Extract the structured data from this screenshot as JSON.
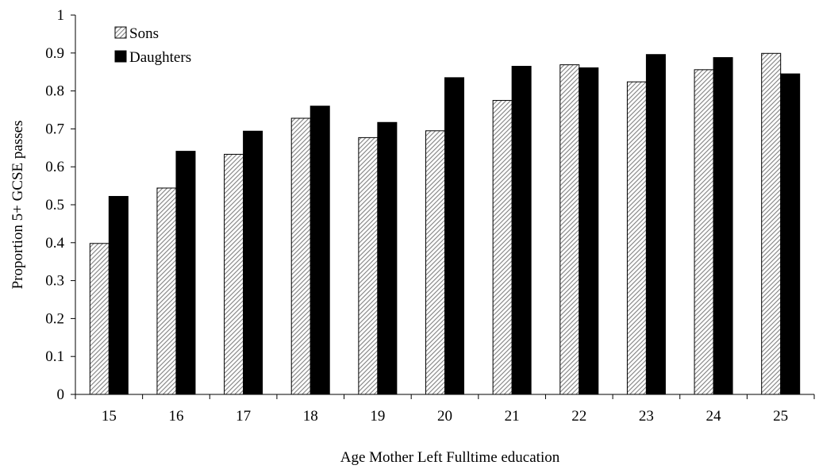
{
  "chart_data": {
    "type": "bar",
    "title": "",
    "xlabel": "Age Mother Left Fulltime education",
    "ylabel": "Proportion 5+ GCSE passes",
    "ylim": [
      0,
      1
    ],
    "yticks": [
      "0",
      "0.1",
      "0.2",
      "0.3",
      "0.4",
      "0.5",
      "0.6",
      "0.7",
      "0.8",
      "0.9",
      "1"
    ],
    "categories": [
      "15",
      "16",
      "17",
      "18",
      "19",
      "20",
      "21",
      "22",
      "23",
      "24",
      "25"
    ],
    "series": [
      {
        "name": "Sons",
        "fill": "hatched",
        "values": [
          0.398,
          0.544,
          0.633,
          0.728,
          0.677,
          0.695,
          0.775,
          0.869,
          0.824,
          0.856,
          0.899
        ]
      },
      {
        "name": "Daughters",
        "fill": "solid",
        "values": [
          0.522,
          0.641,
          0.694,
          0.76,
          0.717,
          0.835,
          0.865,
          0.861,
          0.896,
          0.888,
          0.845
        ]
      }
    ],
    "legend_position": "top-left",
    "grid": false,
    "colors": {
      "sons_base": "#ffffff",
      "sons_hatch": "#808080",
      "daughters": "#000000",
      "axis": "#000000"
    }
  }
}
